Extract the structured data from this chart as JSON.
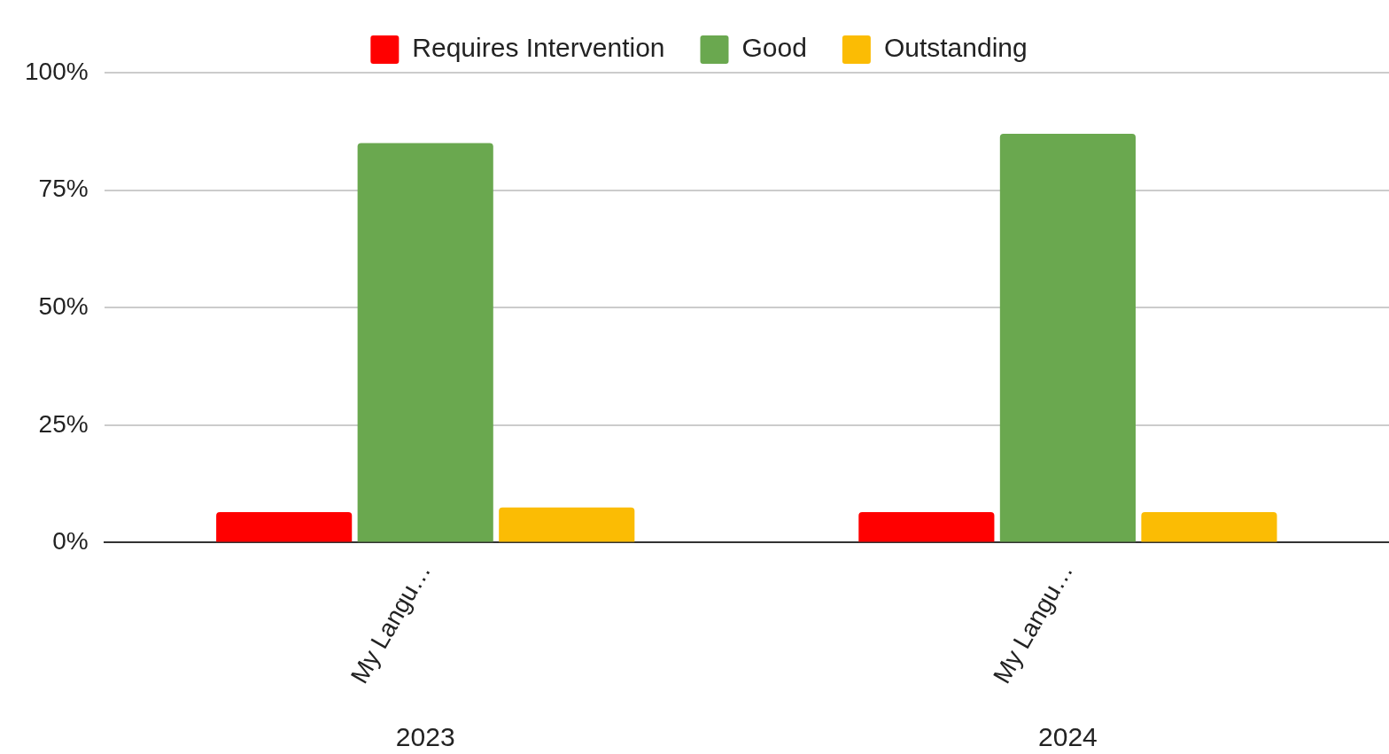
{
  "chart_data": {
    "type": "bar",
    "categories": [
      "My Langu…",
      "My Langu…"
    ],
    "series": [
      {
        "name": "Requires Intervention",
        "color": "#ff0000",
        "values": [
          6.5,
          6.5
        ]
      },
      {
        "name": "Good",
        "color": "#6aa84f",
        "values": [
          85,
          87
        ]
      },
      {
        "name": "Outstanding",
        "color": "#fbbc04",
        "values": [
          7.5,
          6.5
        ]
      }
    ],
    "ylim": [
      0,
      100
    ],
    "yticks": [
      {
        "value": 0,
        "label": "0%"
      },
      {
        "value": 25,
        "label": "25%"
      },
      {
        "value": 50,
        "label": "50%"
      },
      {
        "value": 75,
        "label": "75%"
      },
      {
        "value": 100,
        "label": "100%"
      }
    ],
    "grid": "y",
    "legend": "top",
    "annotations": [
      "2023",
      "2024"
    ]
  }
}
